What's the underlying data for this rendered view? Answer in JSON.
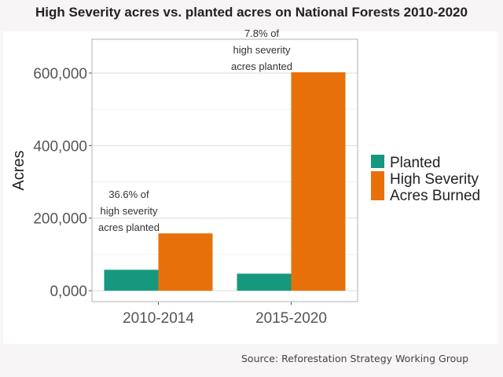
{
  "chart_data": {
    "type": "bar",
    "title": "High Severity acres vs. planted acres on National Forests 2010-2020",
    "xlabel": "",
    "ylabel": "Acres",
    "categories": [
      "2010-2014",
      "2015-2020"
    ],
    "series": [
      {
        "name": "Planted",
        "values": [
          57800,
          47000
        ],
        "color": "#16987e"
      },
      {
        "name": "High Severity Acres Burned",
        "values": [
          158000,
          602000
        ],
        "color": "#e8700a"
      }
    ],
    "legend_labels": [
      "Planted",
      "High Severity",
      "Acres Burned"
    ],
    "ylim": [
      -30000,
      693000
    ],
    "yticks": [
      0,
      200000,
      400000,
      600000
    ],
    "ytick_labels": [
      "0,000",
      "200,000",
      "400,000",
      "600,000"
    ],
    "grid": true,
    "legend_position": "right",
    "annotations": [
      {
        "category": "2010-2014",
        "lines": [
          "36.6% of",
          "high severity",
          "acres planted"
        ]
      },
      {
        "category": "2015-2020",
        "lines": [
          "7.8% of",
          "high severity",
          "acres planted"
        ]
      }
    ],
    "source": "Source: Reforestation Strategy Working Group"
  }
}
